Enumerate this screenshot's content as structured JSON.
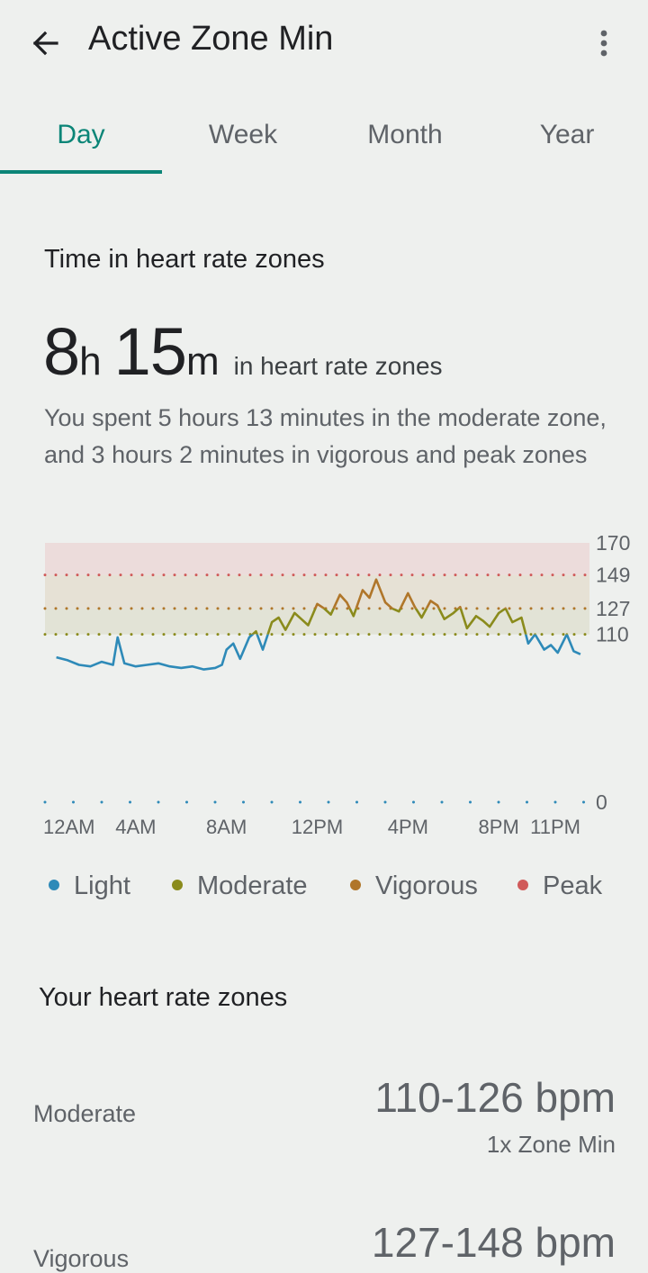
{
  "header": {
    "title": "Active Zone Min"
  },
  "tabs": [
    {
      "label": "Day"
    },
    {
      "label": "Week"
    },
    {
      "label": "Month"
    },
    {
      "label": "Year"
    }
  ],
  "summary": {
    "section_title": "Time in heart rate zones",
    "hours": "8",
    "hours_unit": "h",
    "minutes": "15",
    "minutes_unit": "m",
    "suffix": "in heart rate zones",
    "description": "You spent 5 hours 13 minutes in the moderate zone, and 3 hours 2 minutes in vigorous and peak zones"
  },
  "chart_data": {
    "type": "line",
    "x_tick_labels": [
      "12AM",
      "4AM",
      "8AM",
      "12PM",
      "4PM",
      "8PM",
      "11PM"
    ],
    "y_tick_labels": [
      "170",
      "149",
      "127",
      "110",
      "0"
    ],
    "ylim": [
      0,
      170
    ],
    "xlim_hours": [
      0,
      24
    ],
    "zones": [
      {
        "name": "Moderate",
        "from": 110,
        "to": 127
      },
      {
        "name": "Vigorous",
        "from": 127,
        "to": 149
      },
      {
        "name": "Peak",
        "from": 149,
        "to": 170
      }
    ],
    "series": [
      {
        "x": [
          0.5,
          1,
          1.5,
          2,
          2.5,
          3,
          3.2,
          3.5,
          4,
          4.5,
          5,
          5.5,
          6,
          6.5,
          7,
          7.5,
          7.8,
          8,
          8.3,
          8.6,
          9,
          9.3,
          9.6,
          10,
          10.3,
          10.6,
          11,
          11.3,
          11.6,
          12,
          12.3,
          12.6,
          13,
          13.3,
          13.6,
          14,
          14.3,
          14.6,
          15,
          15.3,
          15.6,
          16,
          16.3,
          16.6,
          17,
          17.3,
          17.6,
          18,
          18.3,
          18.6,
          19,
          19.3,
          19.6,
          20,
          20.3,
          20.6,
          21,
          21.3,
          21.6,
          22,
          22.3,
          22.6,
          23,
          23.3,
          23.6
        ],
        "y": [
          95,
          93,
          90,
          89,
          92,
          90,
          108,
          91,
          89,
          90,
          91,
          89,
          88,
          89,
          87,
          88,
          90,
          100,
          104,
          94,
          108,
          112,
          100,
          118,
          121,
          113,
          124,
          120,
          116,
          130,
          127,
          123,
          136,
          131,
          122,
          139,
          134,
          146,
          131,
          127,
          125,
          137,
          128,
          121,
          132,
          129,
          120,
          124,
          128,
          114,
          122,
          119,
          115,
          124,
          127,
          118,
          121,
          104,
          110,
          100,
          103,
          98,
          110,
          99,
          97
        ],
        "series_colors": {
          "Light": "#2e8ab8",
          "Moderate": "#8a8b1c",
          "Vigorous": "#b0762a",
          "Peak": "#d05a5a"
        }
      }
    ],
    "legend": [
      "Light",
      "Moderate",
      "Vigorous",
      "Peak"
    ],
    "legend_placement": "bottom"
  },
  "legend": [
    {
      "label": "Light",
      "color": "#2e8ab8"
    },
    {
      "label": "Moderate",
      "color": "#8a8b1c"
    },
    {
      "label": "Vigorous",
      "color": "#b0762a"
    },
    {
      "label": "Peak",
      "color": "#d05a5a"
    }
  ],
  "zones_section": {
    "title": "Your heart rate zones",
    "items": [
      {
        "name": "Moderate",
        "range": "110-126 bpm",
        "multiplier": "1x Zone Min"
      },
      {
        "name": "Vigorous",
        "range": "127-148 bpm"
      }
    ]
  },
  "colors": {
    "accent": "#0b8577",
    "background": "#eef0ee",
    "light": "#2e8ab8",
    "moderate": "#8a8b1c",
    "vigorous": "#b0762a",
    "peak": "#d05a5a"
  }
}
